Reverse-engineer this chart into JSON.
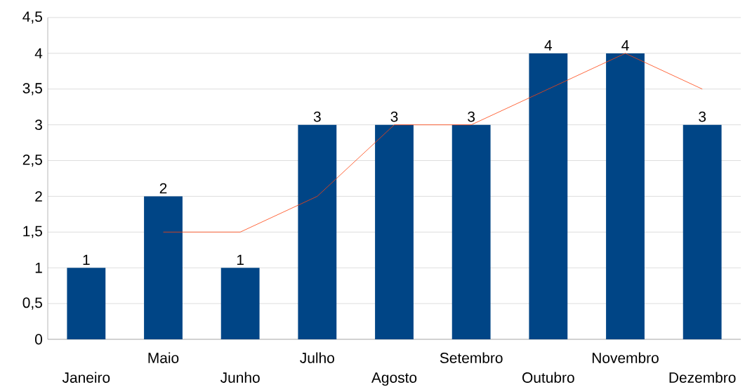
{
  "chart_data": {
    "type": "bar",
    "categories": [
      "Janeiro",
      "Maio",
      "Junho",
      "Julho",
      "Agosto",
      "Setembro",
      "Outubro",
      "Novembro",
      "Dezembro"
    ],
    "series": [
      {
        "color": "#004586",
        "values": [
          1,
          2,
          1,
          3,
          3,
          3,
          4,
          4,
          3
        ],
        "value_labels": [
          "1",
          "2",
          "1",
          "3",
          "3",
          "3",
          "4",
          "4",
          "3"
        ]
      },
      {
        "type": "line",
        "color": "#ff420e",
        "values": [
          null,
          1.5,
          1.5,
          2,
          3,
          3,
          3.5,
          4,
          3.5
        ]
      }
    ],
    "ylim": [
      0,
      4.5
    ],
    "yticks": [
      {
        "value": 0,
        "label": "0"
      },
      {
        "value": 0.5,
        "label": "0,5"
      },
      {
        "value": 1,
        "label": "1"
      },
      {
        "value": 1.5,
        "label": "1,5"
      },
      {
        "value": 2,
        "label": "2"
      },
      {
        "value": 2.5,
        "label": "2,5"
      },
      {
        "value": 3,
        "label": "3"
      },
      {
        "value": 3.5,
        "label": "3,5"
      },
      {
        "value": 4,
        "label": "4"
      },
      {
        "value": 4.5,
        "label": "4,5"
      }
    ],
    "grid": "y",
    "marker": "none"
  }
}
